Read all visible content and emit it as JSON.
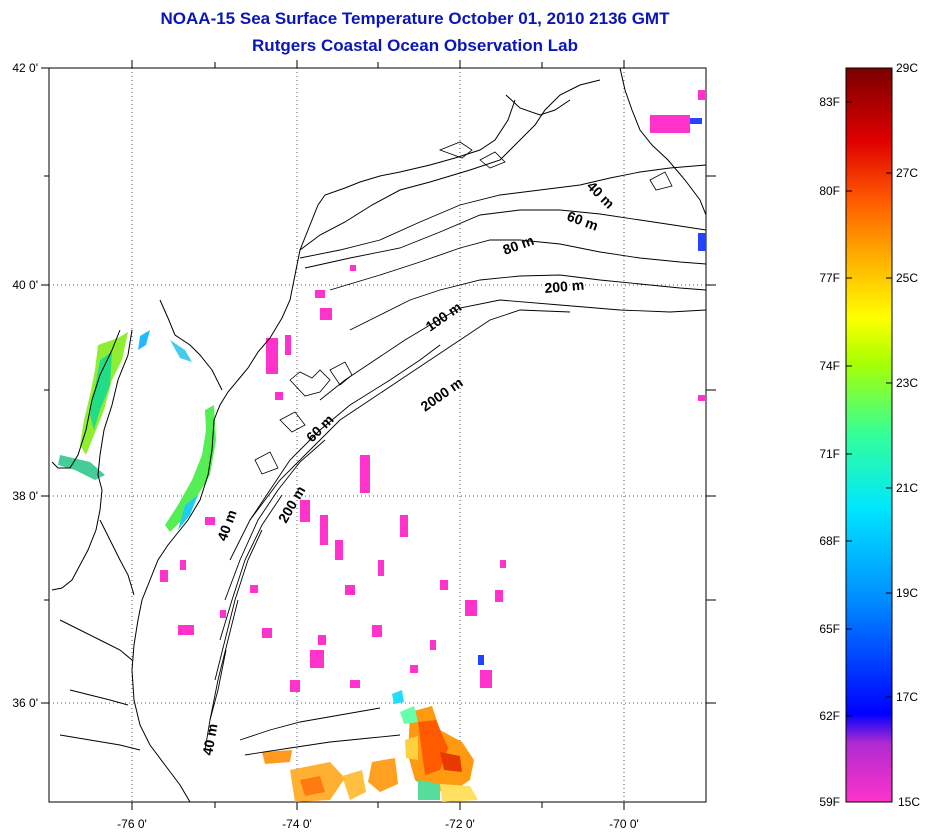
{
  "title_line1": "NOAA-15 Sea Surface Temperature October 01, 2010 2136 GMT",
  "title_line2": "Rutgers Coastal Ocean Observation Lab",
  "lat_labels": [
    "42 0'",
    "40 0'",
    "38 0'",
    "36 0'"
  ],
  "lon_labels": [
    "-76 0'",
    "-74 0'",
    "-72 0'",
    "-70 0'"
  ],
  "contour_labels": [
    "40 m",
    "60 m",
    "80 m",
    "200 m",
    "100 m",
    "2000 m",
    "60 m",
    "40 m",
    "200 m",
    "40 m"
  ],
  "colorbar": {
    "fahrenheit_labels": [
      "83F",
      "80F",
      "77F",
      "74F",
      "71F",
      "68F",
      "65F",
      "62F",
      "59F"
    ],
    "celsius_labels": [
      "29C",
      "27C",
      "25C",
      "23C",
      "21C",
      "19C",
      "17C",
      "15C"
    ],
    "colors": [
      "#ff33cc",
      "#8a22c8",
      "#0000ff",
      "#0090ff",
      "#00e6ff",
      "#33ff99",
      "#aaff00",
      "#ffff00",
      "#ffb000",
      "#ff5a00",
      "#e00000",
      "#800000"
    ]
  }
}
